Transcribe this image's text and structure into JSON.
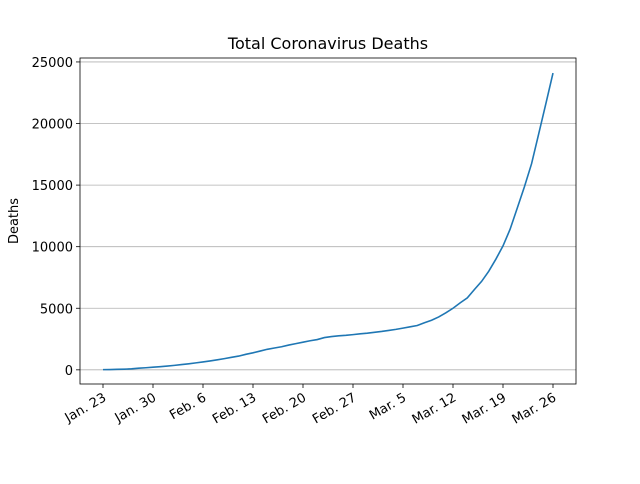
{
  "chart_data": {
    "type": "line",
    "title": "Total Coronavirus Deaths",
    "y_label": "Deaths",
    "categories": [
      "Jan. 23",
      null,
      null,
      null,
      null,
      null,
      null,
      "Jan. 30",
      null,
      null,
      null,
      null,
      null,
      null,
      "Feb. 6",
      null,
      null,
      null,
      null,
      null,
      null,
      "Feb. 13",
      null,
      null,
      null,
      null,
      null,
      null,
      "Feb. 20",
      null,
      null,
      null,
      null,
      null,
      null,
      "Feb. 27",
      null,
      null,
      null,
      null,
      null,
      null,
      "Mar. 5",
      null,
      null,
      null,
      null,
      null,
      null,
      "Mar. 12",
      null,
      null,
      null,
      null,
      null,
      null,
      "Mar. 19",
      null,
      null,
      null,
      null,
      null,
      null,
      "Mar. 26"
    ],
    "series": [
      {
        "name": "Deaths",
        "color": "#1f77b4",
        "values": [
          18,
          26,
          42,
          56,
          82,
          131,
          170,
          213,
          259,
          305,
          362,
          426,
          492,
          565,
          638,
          724,
          813,
          910,
          1018,
          1115,
          1261,
          1383,
          1526,
          1669,
          1775,
          1873,
          2009,
          2126,
          2247,
          2360,
          2460,
          2618,
          2699,
          2763,
          2800,
          2858,
          2923,
          2977,
          3050,
          3117,
          3202,
          3285,
          3387,
          3494,
          3599,
          3827,
          4025,
          4296,
          4628,
          5000,
          5438,
          5839,
          6524,
          7181,
          8000,
          8986,
          10060,
          11426,
          13138,
          14868,
          16738,
          19164,
          21611,
          24100
        ]
      }
    ],
    "ylim": [
      -1150,
      25320
    ],
    "yticks": [
      0,
      5000,
      10000,
      15000,
      20000,
      25000
    ],
    "grid": "y"
  }
}
